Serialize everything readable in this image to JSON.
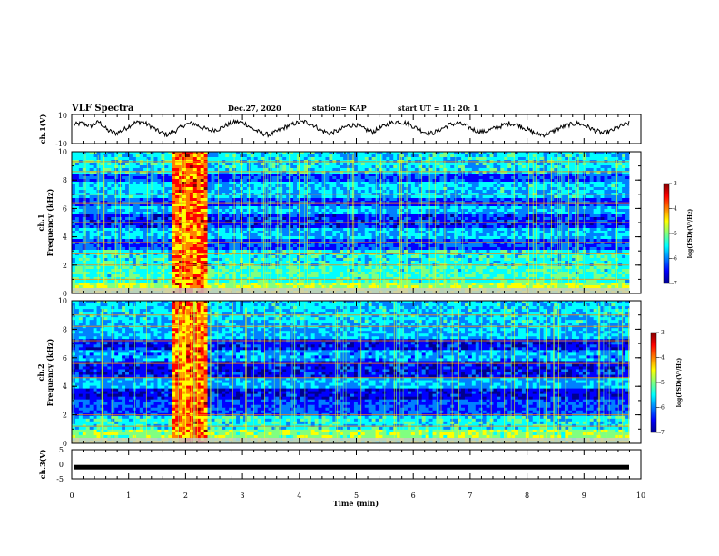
{
  "header": {
    "title": "VLF Spectra",
    "date": "Dec.27, 2020",
    "station": "station= KAP",
    "start": "start  UT =   11: 20: 1"
  },
  "chart_data": [
    {
      "type": "line",
      "panel": "ch1-waveform",
      "ylabel": "ch.1(V)",
      "ylim": [
        -10,
        10
      ],
      "yticks": [
        "10",
        "-10"
      ],
      "xlim": [
        0,
        10
      ],
      "y_approx": [
        3,
        4,
        2,
        5,
        -1,
        -3,
        0,
        4,
        5,
        2,
        -2,
        -4,
        -1,
        3,
        4,
        1,
        -1,
        0,
        3,
        5,
        4,
        0,
        -3,
        -4,
        -1,
        2,
        4,
        5,
        3,
        -1,
        -3,
        -1,
        2,
        3,
        0,
        -2,
        1,
        4,
        5,
        4,
        1,
        -2,
        -3,
        0,
        3,
        4,
        2,
        -1,
        -2,
        0,
        2,
        4,
        3,
        0,
        -3,
        -4,
        -2,
        1,
        3,
        4,
        2,
        -1,
        -3,
        -1,
        2,
        4
      ]
    },
    {
      "type": "heatmap",
      "panel": "ch1-spectrogram",
      "ylabel": "ch.1",
      "ylabel2": "Frequency (kHz)",
      "ylim": [
        0,
        10
      ],
      "yticks": [
        "0",
        "2",
        "4",
        "6",
        "8",
        "10"
      ],
      "xlim": [
        0,
        10
      ],
      "colorbar": {
        "label": "log(PSD)(V²/Hz)",
        "range": [
          -7,
          -3
        ],
        "ticks": [
          "-3",
          "-4",
          "-5",
          "-6",
          "-7"
        ]
      }
    },
    {
      "type": "heatmap",
      "panel": "ch2-spectrogram",
      "ylabel": "ch.2",
      "ylabel2": "Frequency (kHz)",
      "ylim": [
        0,
        10
      ],
      "yticks": [
        "0",
        "2",
        "4",
        "6",
        "8",
        "10"
      ],
      "xlim": [
        0,
        10
      ],
      "colorbar": {
        "label": "log(PSD)(V²/Hz)",
        "range": [
          -7,
          -3
        ],
        "ticks": [
          "-3",
          "-4",
          "-5",
          "-6",
          "-7"
        ]
      }
    },
    {
      "type": "line",
      "panel": "ch3-waveform",
      "ylabel": "ch.3(V)",
      "ylim": [
        -5,
        5
      ],
      "yticks": [
        "5",
        "0",
        "-5"
      ],
      "xlim": [
        0,
        10
      ],
      "xticks": [
        "0",
        "1",
        "2",
        "3",
        "4",
        "5",
        "6",
        "7",
        "8",
        "9",
        "10"
      ],
      "xlabel": "Time (min)",
      "y_approx": [
        -1,
        -1
      ]
    }
  ],
  "colors": {
    "jet": [
      "#00008f",
      "#0000ff",
      "#0080ff",
      "#00ffff",
      "#80ff80",
      "#ffff00",
      "#ff8000",
      "#ff0000",
      "#800000"
    ]
  }
}
